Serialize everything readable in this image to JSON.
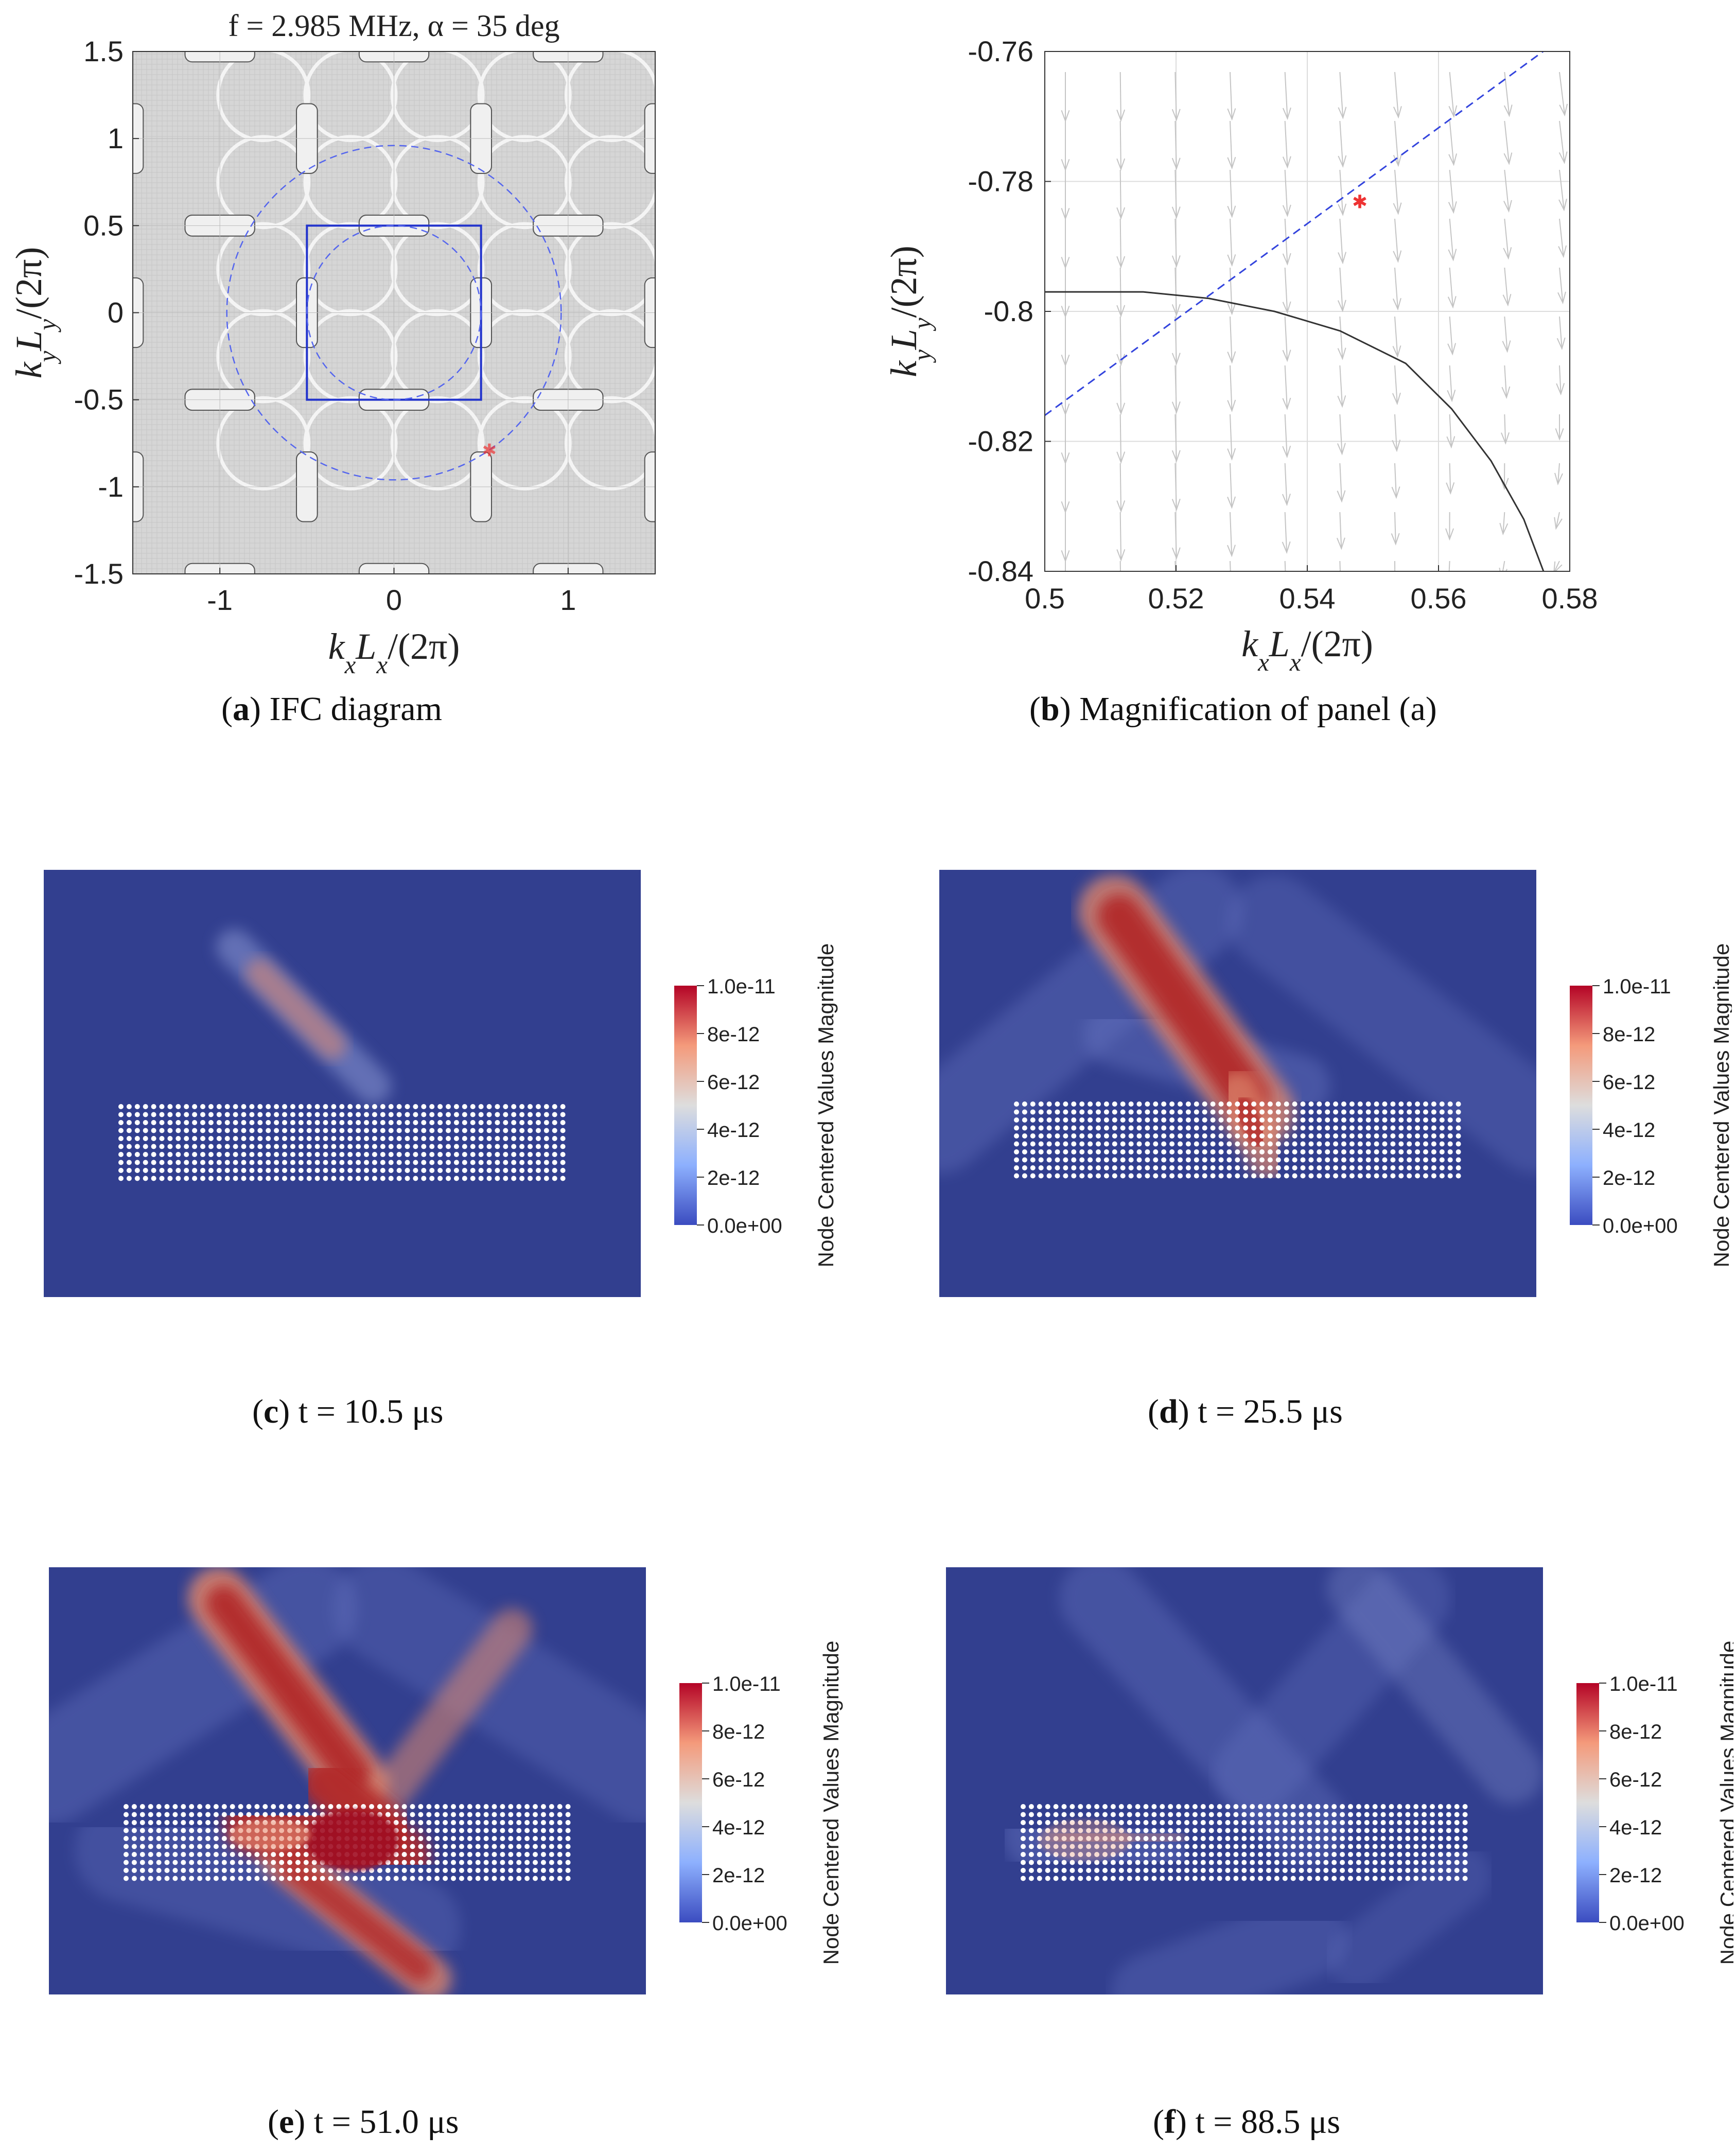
{
  "figure": {
    "panels": [
      {
        "id": "a",
        "letter": "a",
        "text": " IFC diagram"
      },
      {
        "id": "b",
        "letter": "b",
        "text": " Magnification of panel (a)"
      },
      {
        "id": "c",
        "letter": "c",
        "text": " t = 10.5 μs"
      },
      {
        "id": "d",
        "letter": "d",
        "text": " t = 25.5 μs"
      },
      {
        "id": "e",
        "letter": "e",
        "text": " t = 51.0 μs"
      },
      {
        "id": "f",
        "letter": "f",
        "text": " t = 88.5 μs"
      }
    ]
  },
  "chart_data": [
    {
      "type": "scatter",
      "panel": "a",
      "title": "f = 2.985 MHz, α = 35 deg",
      "xlabel": "kxLx/(2π)",
      "ylabel": "kyLy/(2π)",
      "xlim": [
        -1.5,
        1.5
      ],
      "ylim": [
        -1.5,
        1.5
      ],
      "xticks": [
        -1,
        0,
        1
      ],
      "yticks": [
        -1.5,
        -1,
        -0.5,
        0,
        0.5,
        1,
        1.5
      ],
      "xtick_labels": [
        "-1",
        "0",
        "1"
      ],
      "ytick_labels": [
        "-1.5",
        "-1",
        "-0.5",
        "0",
        "0.5",
        "1",
        "1.5"
      ],
      "grid": true,
      "series": [
        {
          "name": "Brillouin zone",
          "shape": "square",
          "corners": [
            [
              -0.5,
              -0.5
            ],
            [
              0.5,
              -0.5
            ],
            [
              0.5,
              0.5
            ],
            [
              -0.5,
              0.5
            ]
          ],
          "color": "#2233cc"
        },
        {
          "name": "inner circle",
          "shape": "circle",
          "center": [
            0,
            0
          ],
          "radius": 0.5,
          "color": "#5566ee",
          "style": "dashed"
        },
        {
          "name": "outer circle",
          "shape": "circle",
          "center": [
            0,
            0
          ],
          "radius": 0.96,
          "color": "#5566ee",
          "style": "dashed"
        },
        {
          "name": "operating point",
          "x": [
            0.548
          ],
          "y": [
            -0.783
          ],
          "color": "#ee3333",
          "marker": "*"
        }
      ]
    },
    {
      "type": "line",
      "panel": "b",
      "xlabel": "kxLx/(2π)",
      "ylabel": "kyLy/(2π)",
      "xlim": [
        0.5,
        0.58
      ],
      "ylim": [
        -0.84,
        -0.76
      ],
      "xticks": [
        0.5,
        0.52,
        0.54,
        0.56,
        0.58
      ],
      "yticks": [
        -0.84,
        -0.82,
        -0.8,
        -0.78,
        -0.76
      ],
      "xtick_labels": [
        "0.5",
        "0.52",
        "0.54",
        "0.56",
        "0.58"
      ],
      "ytick_labels": [
        "-0.84",
        "-0.82",
        "-0.8",
        "-0.78",
        "-0.76"
      ],
      "grid": true,
      "series": [
        {
          "name": "IFC contour",
          "x": [
            0.5,
            0.515,
            0.525,
            0.535,
            0.545,
            0.555,
            0.562,
            0.568,
            0.573,
            0.576
          ],
          "y": [
            -0.797,
            -0.797,
            -0.798,
            -0.8,
            -0.803,
            -0.808,
            -0.815,
            -0.823,
            -0.832,
            -0.84
          ],
          "color": "#333333"
        },
        {
          "name": "wave vector line",
          "x": [
            0.5,
            0.58
          ],
          "y": [
            -0.816,
            -0.757
          ],
          "color": "#3344dd",
          "style": "dashed"
        },
        {
          "name": "operating point",
          "x": [
            0.548
          ],
          "y": [
            -0.783
          ],
          "color": "#ee3333",
          "marker": "*"
        }
      ]
    },
    {
      "type": "heatmap",
      "panel": "c",
      "colorbar_title": "Node Centered Values Magnitude",
      "colorbar_ticks": [
        "1.0e-11",
        "8e-12",
        "6e-12",
        "4e-12",
        "2e-12",
        "0.0e+00"
      ],
      "clim": [
        0,
        1e-11
      ]
    },
    {
      "type": "heatmap",
      "panel": "d",
      "colorbar_title": "Node Centered Values Magnitude",
      "colorbar_ticks": [
        "1.0e-11",
        "8e-12",
        "6e-12",
        "4e-12",
        "2e-12",
        "0.0e+00"
      ],
      "clim": [
        0,
        1e-11
      ]
    },
    {
      "type": "heatmap",
      "panel": "e",
      "colorbar_title": "Node Centered Values Magnitude",
      "colorbar_ticks": [
        "1.0e-11",
        "8e-12",
        "6e-12",
        "4e-12",
        "2e-12",
        "0.0e+00"
      ],
      "clim": [
        0,
        1e-11
      ]
    },
    {
      "type": "heatmap",
      "panel": "f",
      "colorbar_title": "Node Centered Values Magnitude",
      "colorbar_ticks": [
        "1.0e-11",
        "8e-12",
        "6e-12",
        "4e-12",
        "2e-12",
        "0.0e+00"
      ],
      "clim": [
        0,
        1e-11
      ]
    }
  ]
}
